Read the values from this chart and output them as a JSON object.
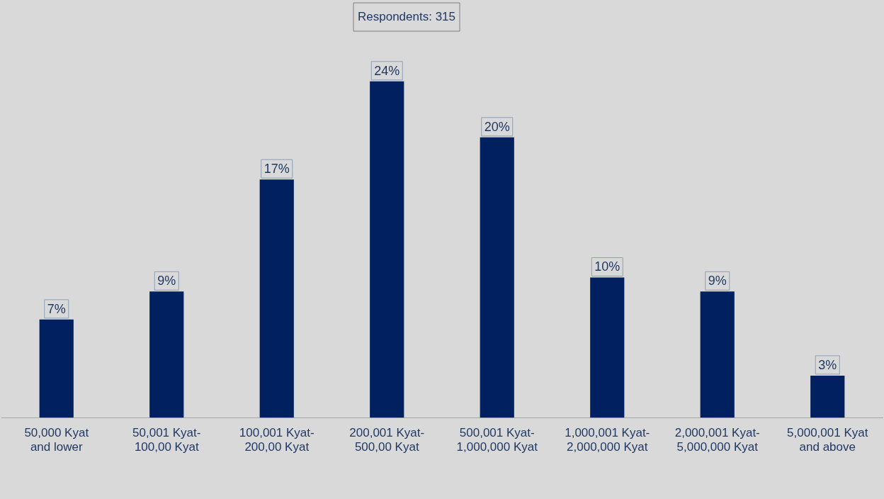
{
  "chart_data": {
    "type": "bar",
    "categories": [
      "50,000 Kyat and lower",
      "50,001 Kyat-100,00 Kyat",
      "100,001 Kyat-200,00 Kyat",
      "200,001 Kyat-500,00 Kyat",
      "500,001 Kyat-1,000,000 Kyat",
      "1,000,001 Kyat-2,000,000 Kyat",
      "2,000,001 Kyat-5,000,000 Kyat",
      "5,000,001 Kyat and above"
    ],
    "values": [
      7,
      9,
      17,
      24,
      20,
      10,
      9,
      3
    ],
    "value_labels": [
      "7%",
      "9%",
      "17%",
      "24%",
      "20%",
      "10%",
      "9%",
      "3%"
    ],
    "color": "#002060",
    "tick_labels": "x",
    "grid": false,
    "legend": false,
    "annotations": [
      "Respondents: 315"
    ]
  }
}
